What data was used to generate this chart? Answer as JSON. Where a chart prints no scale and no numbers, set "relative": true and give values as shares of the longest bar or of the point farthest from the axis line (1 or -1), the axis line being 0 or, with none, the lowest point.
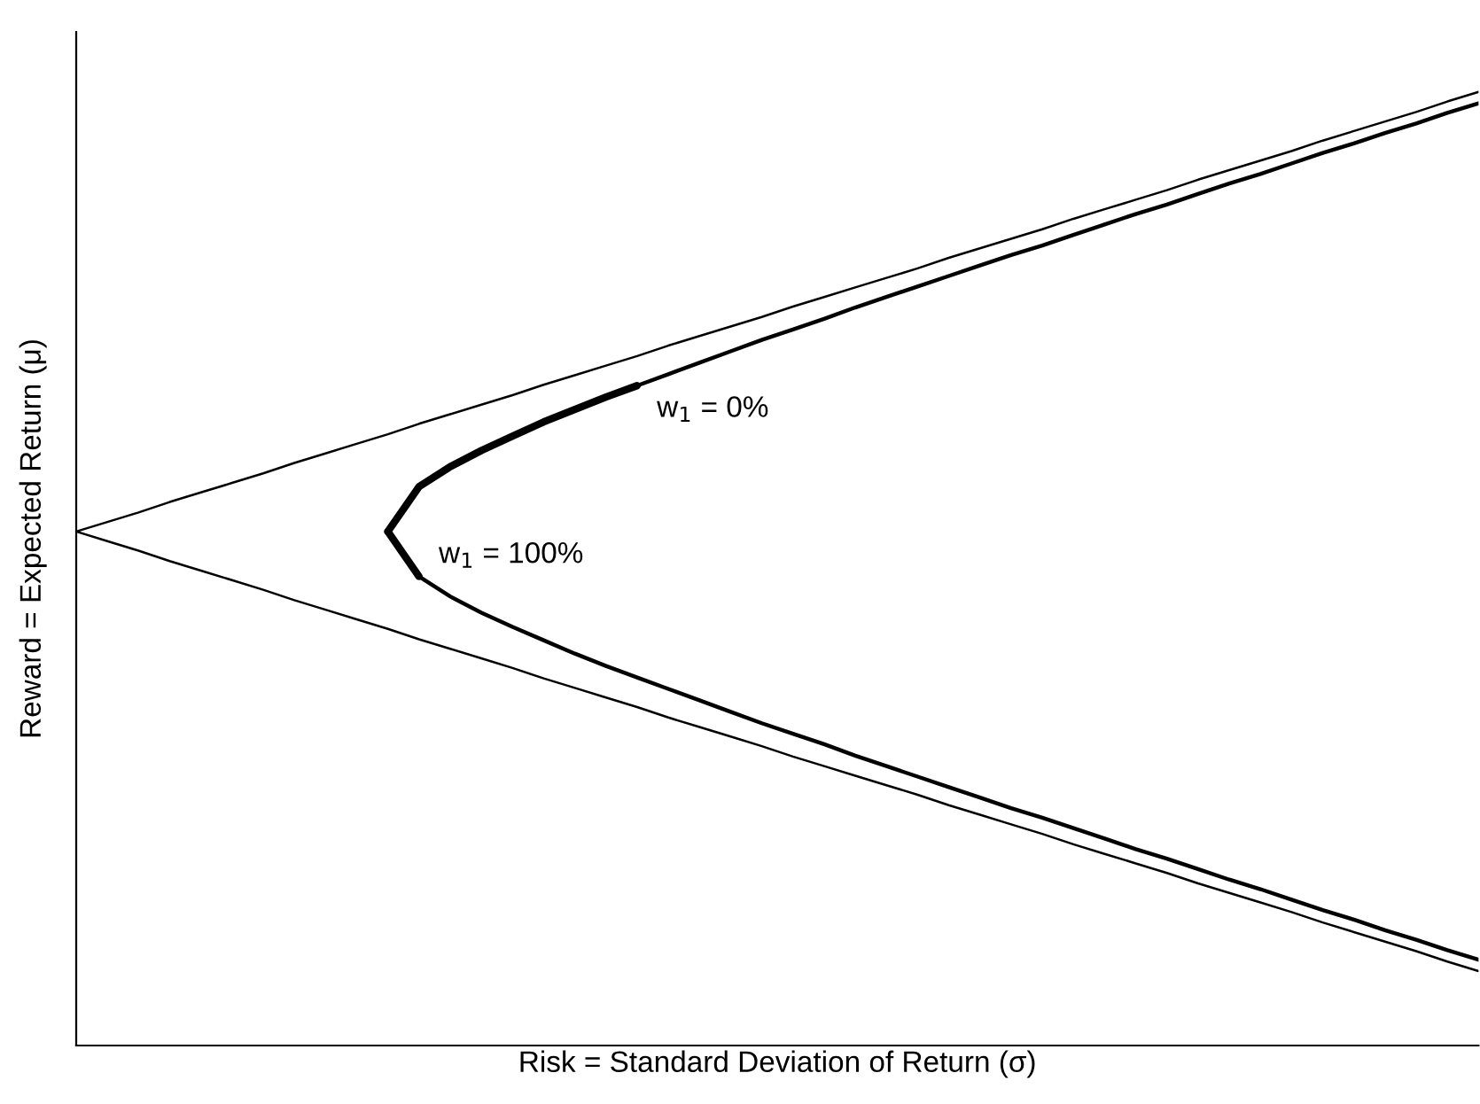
{
  "chart_data": {
    "type": "line",
    "relative": true,
    "xlabel": "Risk = Standard Deviation of Return (σ)",
    "ylabel": "Reward = Expected Return (μ)",
    "categories": [
      null,
      null,
      null,
      null,
      null,
      null,
      null,
      null,
      null,
      null,
      null,
      null,
      null,
      null,
      null,
      null,
      null,
      null,
      null,
      null,
      null,
      null,
      null,
      null,
      null,
      null,
      null,
      null,
      null,
      null,
      null,
      null,
      null,
      null,
      null,
      null,
      null,
      null,
      null,
      null,
      null,
      null,
      null,
      null,
      null,
      null
    ],
    "series": [
      {
        "color": "#000000",
        "values": [
          0.539,
          0.549,
          0.559,
          0.57,
          0.58,
          0.59,
          0.6,
          0.611,
          0.621,
          0.631,
          0.641,
          0.652,
          0.662,
          0.672,
          0.682,
          0.693,
          0.703,
          0.713,
          0.723,
          0.734,
          0.744,
          0.754,
          0.764,
          0.775,
          0.785,
          0.795,
          0.805,
          0.815,
          0.826,
          0.836,
          0.846,
          0.856,
          0.867,
          0.877,
          0.887,
          0.897,
          0.908,
          0.918,
          0.928,
          0.938,
          0.949,
          0.959,
          0.969,
          0.979,
          0.99,
          1.0
        ]
      },
      {
        "color": "#000000",
        "values": [
          0.539,
          0.529,
          0.519,
          0.508,
          0.498,
          0.488,
          0.478,
          0.467,
          0.457,
          0.447,
          0.437,
          0.426,
          0.416,
          0.406,
          0.396,
          0.385,
          0.375,
          0.365,
          0.355,
          0.344,
          0.334,
          0.324,
          0.314,
          0.303,
          0.293,
          0.283,
          0.273,
          0.263,
          0.252,
          0.242,
          0.232,
          0.222,
          0.211,
          0.201,
          0.191,
          0.181,
          0.17,
          0.16,
          0.15,
          0.14,
          0.129,
          0.119,
          0.109,
          0.099,
          0.088,
          0.078
        ]
      },
      {
        "color": "#000000",
        "values": [
          null,
          null,
          null,
          null,
          null,
          null,
          null,
          null,
          null,
          null,
          0.539,
          0.586,
          0.607,
          0.624,
          0.639,
          0.654,
          0.667,
          0.68,
          0.692,
          0.704,
          0.716,
          0.728,
          0.74,
          0.751,
          0.762,
          0.774,
          0.785,
          0.796,
          0.807,
          0.818,
          0.829,
          0.839,
          0.85,
          0.861,
          0.872,
          0.882,
          0.893,
          0.904,
          0.914,
          0.925,
          0.936,
          0.946,
          0.957,
          0.967,
          0.978,
          0.988
        ]
      },
      {
        "color": "#000000",
        "values": [
          null,
          null,
          null,
          null,
          null,
          null,
          null,
          null,
          null,
          null,
          0.539,
          0.492,
          0.471,
          0.454,
          0.439,
          0.425,
          0.411,
          0.398,
          0.386,
          0.374,
          0.362,
          0.35,
          0.338,
          0.327,
          0.316,
          0.304,
          0.293,
          0.282,
          0.271,
          0.26,
          0.249,
          0.239,
          0.228,
          0.217,
          0.206,
          0.196,
          0.185,
          0.174,
          0.164,
          0.153,
          0.142,
          0.132,
          0.121,
          0.111,
          0.1,
          0.09
        ]
      },
      {
        "color": "#000000",
        "values": [
          null,
          null,
          null,
          null,
          null,
          null,
          null,
          null,
          null,
          null,
          0.539,
          0.586,
          0.607,
          0.624,
          0.639,
          0.654,
          0.667,
          0.68,
          0.692,
          null,
          null,
          null,
          null,
          null,
          null,
          null,
          null,
          null,
          null,
          null,
          null,
          null,
          null,
          null,
          null,
          null,
          null,
          null,
          null,
          null,
          null,
          null,
          null,
          null,
          null,
          null
        ]
      },
      {
        "color": "#000000",
        "values": [
          null,
          null,
          null,
          null,
          null,
          null,
          null,
          null,
          null,
          null,
          0.539,
          0.492,
          null,
          null,
          null,
          null,
          null,
          null,
          null,
          null,
          null,
          null,
          null,
          null,
          null,
          null,
          null,
          null,
          null,
          null,
          null,
          null,
          null,
          null,
          null,
          null,
          null,
          null,
          null,
          null,
          null,
          null,
          null,
          null,
          null,
          null
        ]
      }
    ],
    "annotations": [
      "w$_{1}$ = 0%",
      "w$_{1}$ = 100%"
    ]
  }
}
